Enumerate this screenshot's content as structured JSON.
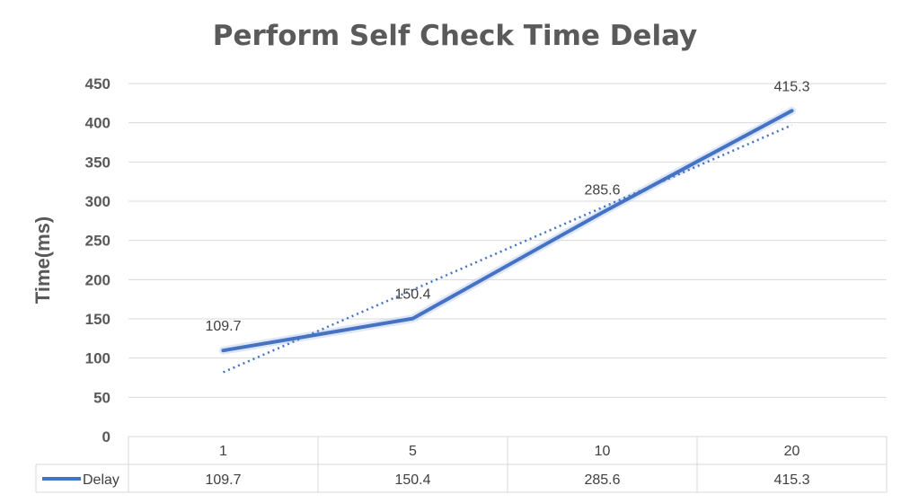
{
  "chart_data": {
    "type": "line",
    "title": "Perform Self Check Time Delay",
    "xlabel": "",
    "ylabel": "Time(ms)",
    "categories": [
      "1",
      "5",
      "10",
      "20"
    ],
    "series": [
      {
        "name": "Delay",
        "values": [
          109.7,
          150.4,
          285.6,
          415.3
        ]
      }
    ],
    "data_labels": [
      "109.7",
      "150.4",
      "285.6",
      "415.3"
    ],
    "trendline": {
      "type": "linear",
      "style": "dotted",
      "start": 82,
      "end": 397
    },
    "ylim": [
      0,
      450
    ],
    "yticks": [
      0,
      50,
      100,
      150,
      200,
      250,
      300,
      350,
      400,
      450
    ],
    "grid": true,
    "legend": "data-table",
    "data_table": true,
    "colors": {
      "series": "#4472c4",
      "grid": "#d9d9d9",
      "text": "#595959",
      "title": "#5a5a5a"
    }
  }
}
